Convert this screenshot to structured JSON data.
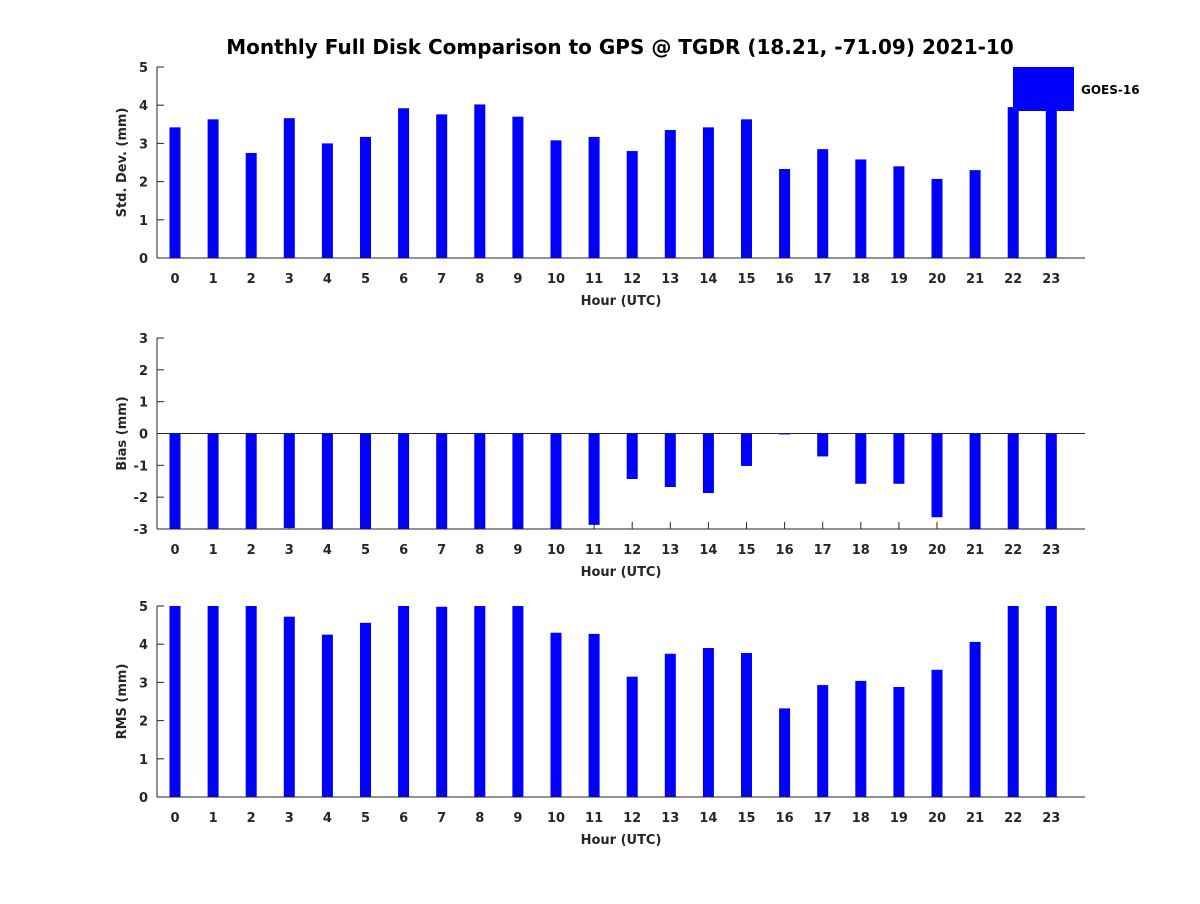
{
  "chart_data": {
    "title": "Monthly Full Disk Comparison to GPS @ TGDR (18.21, -71.09) 2021-10",
    "type": "bar",
    "legend": {
      "placement": "top-right",
      "entries": [
        "GOES-16"
      ]
    },
    "series_color": "#0000ff",
    "categories": [
      "0",
      "1",
      "2",
      "3",
      "4",
      "5",
      "6",
      "7",
      "8",
      "9",
      "10",
      "11",
      "12",
      "13",
      "14",
      "15",
      "16",
      "17",
      "18",
      "19",
      "20",
      "21",
      "22",
      "23"
    ],
    "panels": [
      {
        "xlabel": "Hour (UTC)",
        "ylabel": "Std. Dev. (mm)",
        "ylim": [
          0,
          5
        ],
        "yticks": [
          "0",
          "1",
          "2",
          "3",
          "4",
          "5"
        ],
        "series": [
          {
            "name": "GOES-16",
            "values": [
              3.42,
              3.63,
              2.75,
              3.66,
              3.0,
              3.17,
              3.92,
              3.76,
              4.02,
              3.7,
              3.08,
              3.17,
              2.8,
              3.35,
              3.42,
              3.63,
              2.33,
              2.85,
              2.58,
              2.4,
              2.07,
              2.3,
              3.95,
              3.93
            ]
          }
        ]
      },
      {
        "xlabel": "Hour (UTC)",
        "ylabel": "Bias (mm)",
        "ylim": [
          -3,
          3
        ],
        "yticks": [
          "-3",
          "-2",
          "-1",
          "0",
          "1",
          "2",
          "3"
        ],
        "series": [
          {
            "values": [
              -3.0,
              -3.0,
              -3.0,
              -2.97,
              -3.0,
              -3.0,
              -3.0,
              -3.0,
              -3.0,
              -3.0,
              -3.0,
              -2.87,
              -1.43,
              -1.68,
              -1.87,
              -1.02,
              -0.03,
              -0.72,
              -1.58,
              -1.58,
              -2.63,
              -3.0,
              -3.0,
              -3.0
            ]
          }
        ]
      },
      {
        "xlabel": "Hour (UTC)",
        "ylabel": "RMS (mm)",
        "ylim": [
          0,
          5
        ],
        "yticks": [
          "0",
          "1",
          "2",
          "3",
          "4",
          "5"
        ],
        "series": [
          {
            "values": [
              5.0,
              5.0,
              5.0,
              4.72,
              4.25,
              4.56,
              5.0,
              4.98,
              5.0,
              5.0,
              4.3,
              4.27,
              3.15,
              3.75,
              3.9,
              3.77,
              2.32,
              2.93,
              3.04,
              2.88,
              3.33,
              4.06,
              5.0,
              5.0
            ]
          }
        ]
      }
    ]
  }
}
